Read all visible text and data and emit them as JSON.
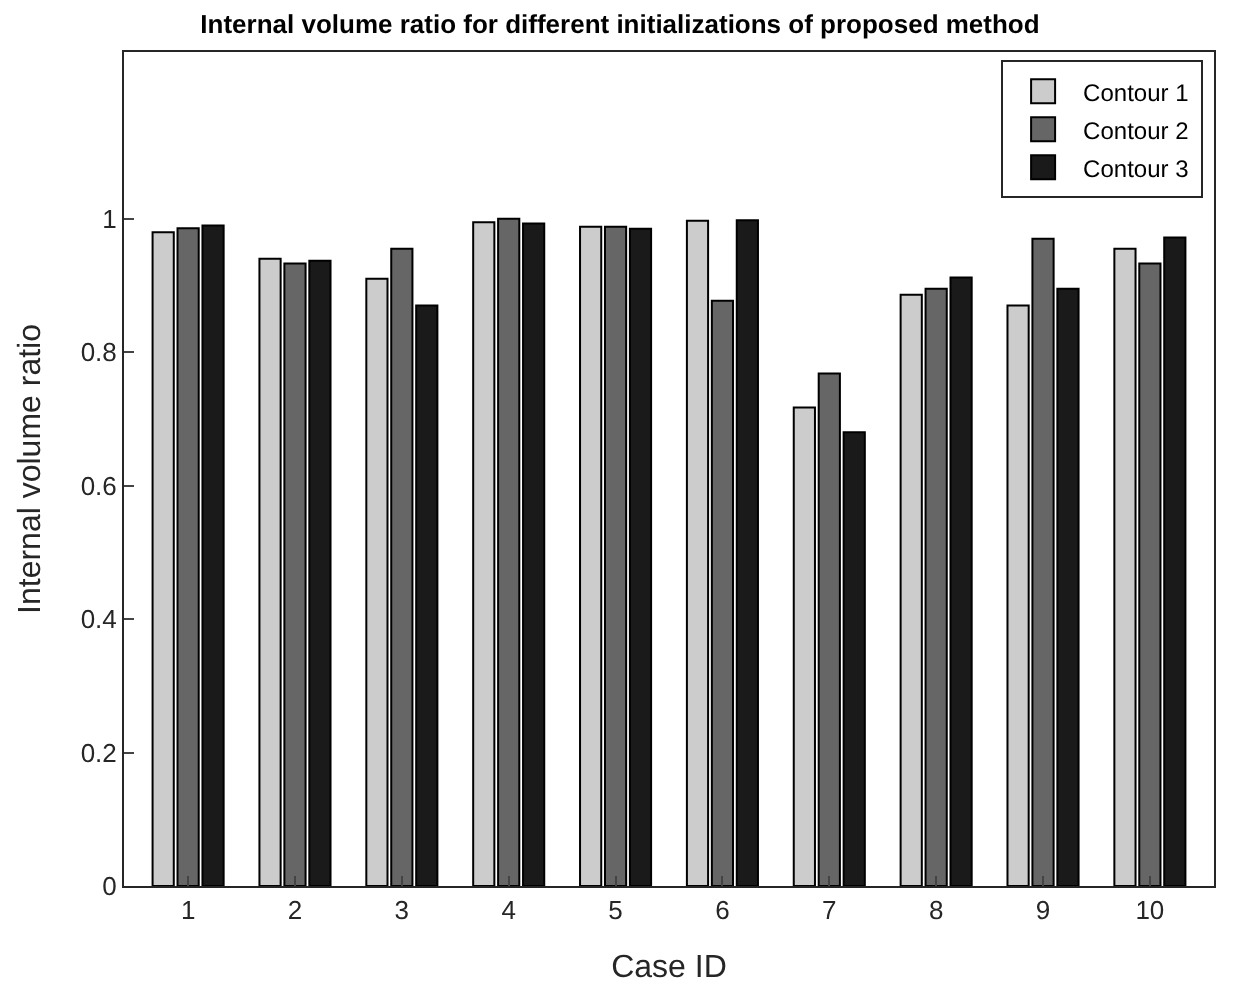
{
  "chart_data": {
    "type": "bar",
    "title": "Internal volume ratio for different initializations of proposed method",
    "xlabel": "Case ID",
    "ylabel": "Internal volume ratio",
    "categories": [
      "1",
      "2",
      "3",
      "4",
      "5",
      "6",
      "7",
      "8",
      "9",
      "10"
    ],
    "series": [
      {
        "name": "Contour 1",
        "color": "#cccccc",
        "values": [
          0.98,
          0.94,
          0.91,
          0.995,
          0.988,
          0.997,
          0.717,
          0.886,
          0.87,
          0.955
        ]
      },
      {
        "name": "Contour 2",
        "color": "#666666",
        "values": [
          0.986,
          0.933,
          0.955,
          1.0,
          0.988,
          0.877,
          0.768,
          0.895,
          0.97,
          0.933
        ]
      },
      {
        "name": "Contour 3",
        "color": "#1a1a1a",
        "values": [
          0.99,
          0.937,
          0.87,
          0.993,
          0.985,
          0.998,
          0.68,
          0.912,
          0.895,
          0.972
        ]
      }
    ],
    "ylim": [
      0,
      1.25
    ],
    "yticks": [
      0,
      0.2,
      0.4,
      0.6,
      0.8,
      1
    ],
    "legend": "top right"
  }
}
